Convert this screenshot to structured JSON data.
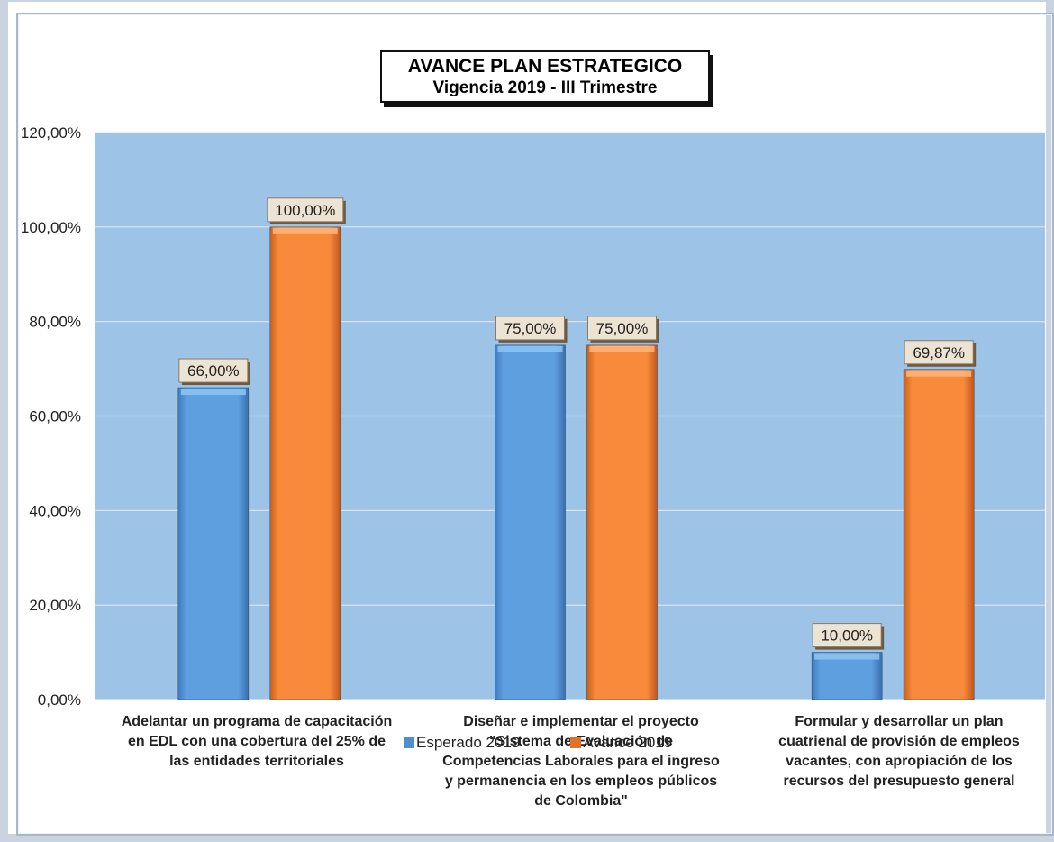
{
  "chart_data": {
    "type": "bar",
    "title": "AVANCE PLAN ESTRATEGICO",
    "subtitle": "Vigencia 2019 - III Trimestre",
    "categories": [
      "Adelantar un programa de capacitación en EDL con una cobertura del 25% de las entidades territoriales",
      "Diseñar e implementar el proyecto \"Sistema de Evaluación de Competencias Laborales para el ingreso y permanencia en los empleos públicos de Colombia\"",
      "Formular y desarrollar un plan cuatrienal de provisión de empleos vacantes, con apropiación de los recursos del presupuesto general"
    ],
    "category_lines": [
      [
        "Adelantar un programa de capacitación",
        "en EDL con una cobertura del 25% de",
        "las entidades territoriales"
      ],
      [
        "Diseñar e implementar el proyecto",
        "\"Sistema de Evaluación de",
        "Competencias Laborales para el ingreso",
        "y permanencia en los empleos públicos",
        "de Colombia\""
      ],
      [
        "Formular y desarrollar un plan",
        "cuatrienal de provisión de empleos",
        "vacantes, con apropiación de los",
        "recursos del presupuesto general"
      ]
    ],
    "series": [
      {
        "name": "Esperado 2019",
        "values": [
          66.0,
          75.0,
          10.0
        ],
        "labels": [
          "66,00%",
          "75,00%",
          "10,00%"
        ],
        "color": "#5b9bd5"
      },
      {
        "name": "Avance 2019",
        "values": [
          100.0,
          75.0,
          69.87
        ],
        "labels": [
          "100,00%",
          "75,00%",
          "69,87%"
        ],
        "color": "#ed7d31"
      }
    ],
    "ylim": [
      0,
      120
    ],
    "yticks": [
      "0,00%",
      "20,00%",
      "40,00%",
      "60,00%",
      "80,00%",
      "100,00%",
      "120,00%"
    ],
    "grid": true,
    "legend_position": "bottom",
    "plot_background": "#9dc3e6"
  }
}
